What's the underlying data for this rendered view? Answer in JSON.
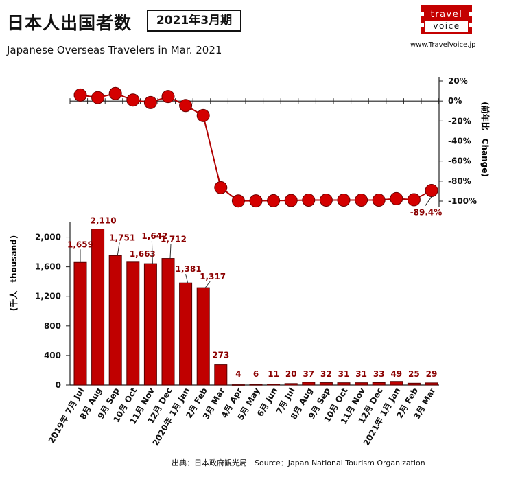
{
  "header": {
    "title_ja": "日本人出国者数",
    "title_period": "2021年3月期",
    "subtitle_en": "Japanese Overseas Travelers in Mar. 2021",
    "website": "www.TravelVoice.jp",
    "source": "出典：日本政府観光局　Source：Japan National Tourism Organization"
  },
  "logo": {
    "line1": "travel",
    "line2": "voice"
  },
  "colors": {
    "bar": "#c00000",
    "bar_border": "#5a0000",
    "line": "#b00000",
    "marker": "#d40000",
    "label": "#8b0000"
  },
  "chart_data": [
    {
      "type": "line",
      "ylabel": "(前年比　Change)",
      "ylim": [
        -100,
        20
      ],
      "yticks": [
        20,
        0,
        -20,
        -40,
        -60,
        -80,
        -100
      ],
      "ytick_labels": [
        "20%",
        "0%",
        "-20%",
        "-40%",
        "-60%",
        "-80%",
        "-100%"
      ],
      "values": [
        6.0,
        3.5,
        7.5,
        1.0,
        -1.5,
        4.5,
        -4.5,
        -14.5,
        -86.5,
        -99.8,
        -99.7,
        -99.6,
        -99.3,
        -99.0,
        -99.0,
        -99.0,
        -99.0,
        -99.0,
        -97.5,
        -98.6,
        -89.4
      ],
      "annotation": {
        "index": 20,
        "text": "-89.4%"
      }
    },
    {
      "type": "bar",
      "ylabel": "(千人　thousand)",
      "ylim": [
        0,
        2200
      ],
      "yticks": [
        0,
        400,
        800,
        1200,
        1600,
        2000
      ],
      "ytick_labels": [
        "0",
        "400",
        "800",
        "1,200",
        "1,600",
        "2,000"
      ],
      "categories": [
        "2019年 7月 Jul",
        "8月 Aug",
        "9月 Sep",
        "10月 Oct",
        "11月 Nov",
        "12月 Dec",
        "2020年 1月 Jan",
        "2月 Feb",
        "3月 Mar",
        "4月 Apr",
        "5月 May",
        "6月 Jun",
        "7月 Jul",
        "8月 Aug",
        "9月 Sep",
        "10月 Oct",
        "11月 Nov",
        "12月 Dec",
        "2021年 1月 Jan",
        "2月 Feb",
        "3月 Mar"
      ],
      "values": [
        1659,
        2110,
        1751,
        1663,
        1642,
        1712,
        1381,
        1317,
        273,
        4,
        6,
        11,
        20,
        37,
        32,
        31,
        31,
        33,
        49,
        25,
        29
      ],
      "data_labels": [
        "1,659",
        "2,110",
        "1,751",
        "1,663",
        "1,642",
        "1,712",
        "1,381",
        "1,317",
        "273",
        "4",
        "6",
        "11",
        "20",
        "37",
        "32",
        "31",
        "31",
        "33",
        "49",
        "25",
        "29"
      ]
    }
  ]
}
